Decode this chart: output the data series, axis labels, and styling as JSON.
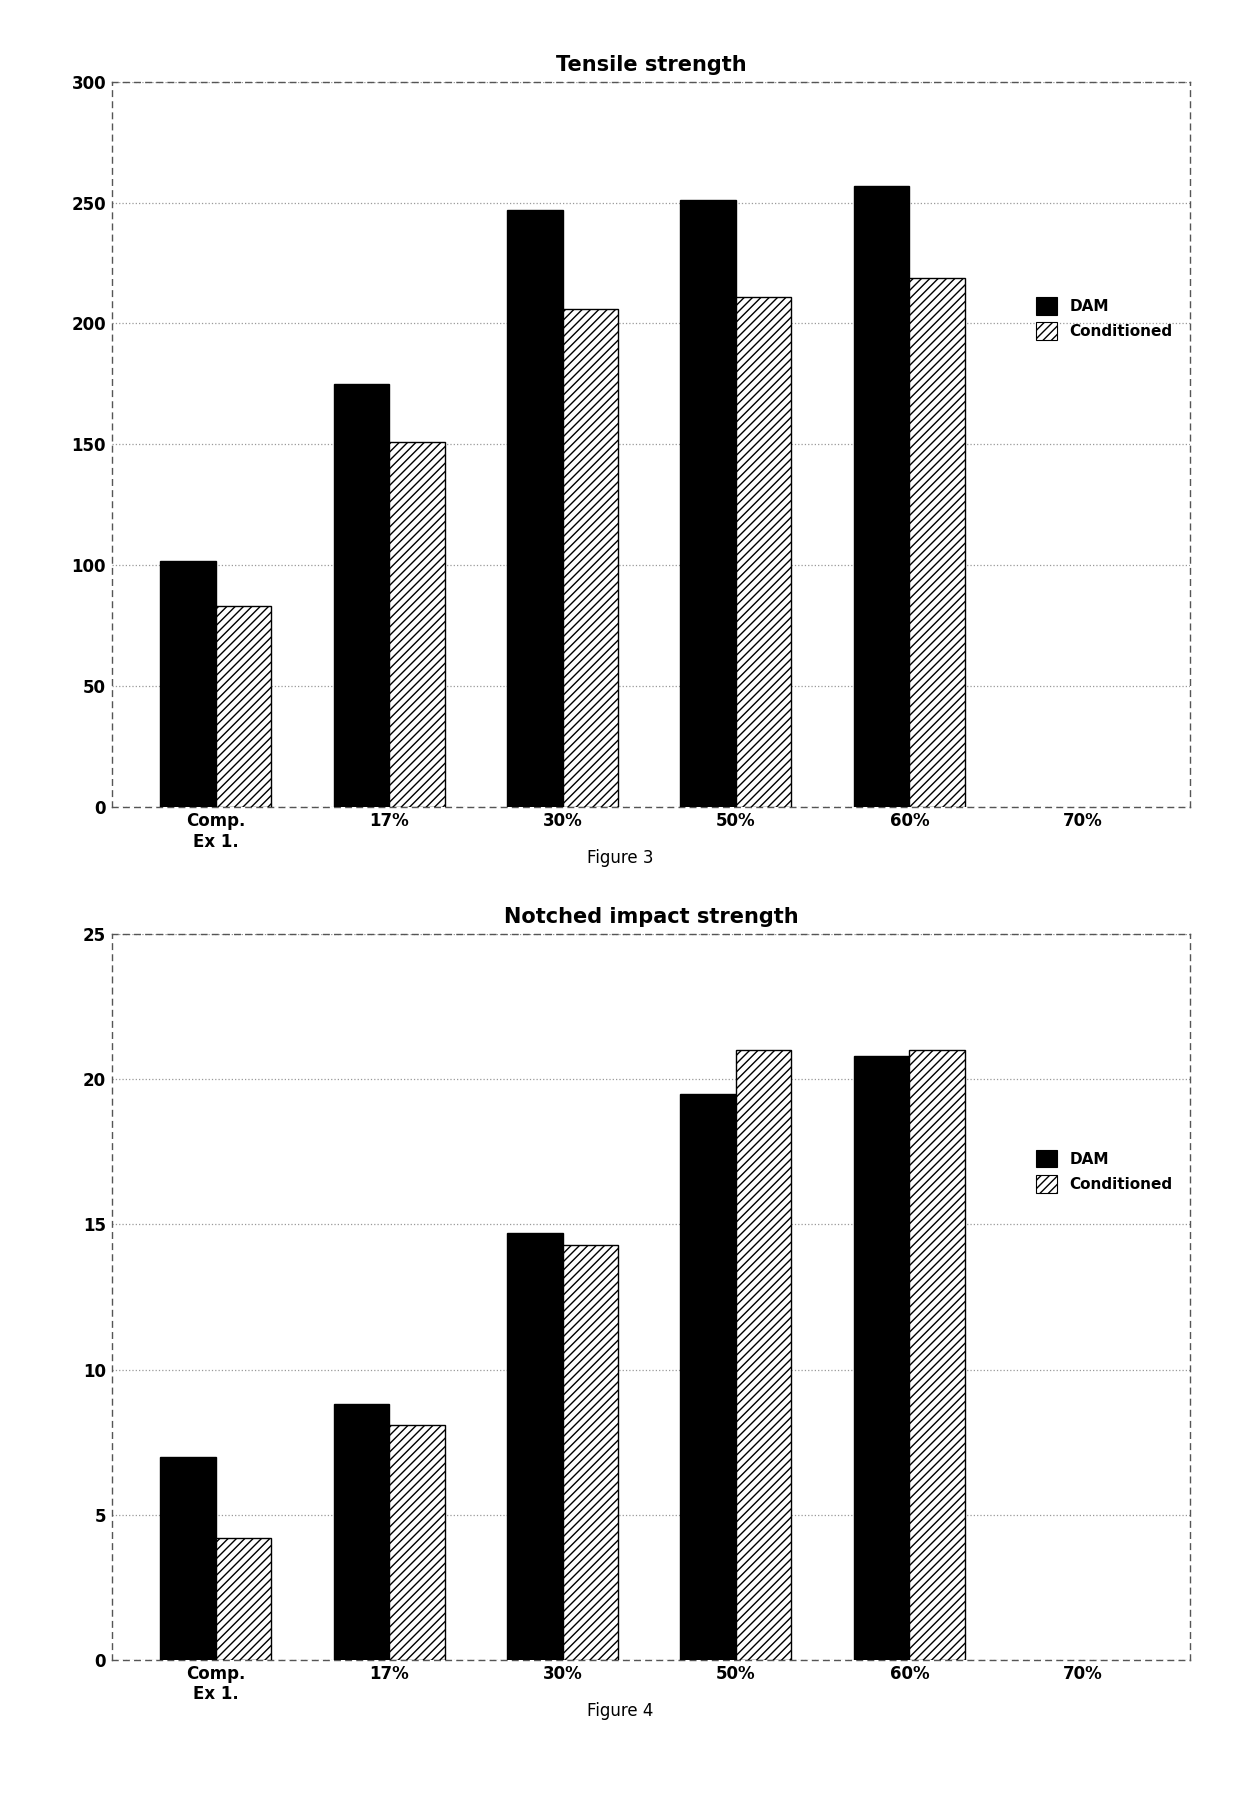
{
  "fig1": {
    "title": "Tensile strength",
    "categories": [
      "Comp.\nEx 1.",
      "17%",
      "30%",
      "50%",
      "60%",
      "70%"
    ],
    "dam_values": [
      102,
      175,
      247,
      251,
      257,
      null
    ],
    "cond_values": [
      83,
      151,
      206,
      211,
      219,
      null
    ],
    "ylim": [
      0,
      300
    ],
    "yticks": [
      0,
      50,
      100,
      150,
      200,
      250,
      300
    ],
    "figure_label": "Figure 3"
  },
  "fig2": {
    "title": "Notched impact strength",
    "categories": [
      "Comp.\nEx 1.",
      "17%",
      "30%",
      "50%",
      "60%",
      "70%"
    ],
    "dam_values": [
      7,
      8.8,
      14.7,
      19.5,
      20.8,
      null
    ],
    "cond_values": [
      4.2,
      8.1,
      14.3,
      21,
      21,
      null
    ],
    "ylim": [
      0,
      25
    ],
    "yticks": [
      0,
      5,
      10,
      15,
      20,
      25
    ],
    "figure_label": "Figure 4"
  },
  "bar_width": 0.32,
  "dam_color": "#000000",
  "cond_color": "#ffffff",
  "legend_labels": [
    "DAM",
    "Conditioned"
  ],
  "hatch_pattern": "////",
  "background_color": "#ffffff",
  "border_color": "#000000",
  "grid_color": "#999999",
  "title_fontsize": 15,
  "tick_fontsize": 12,
  "legend_fontsize": 11,
  "figure_label_fontsize": 12,
  "cat_fontsize": 12
}
